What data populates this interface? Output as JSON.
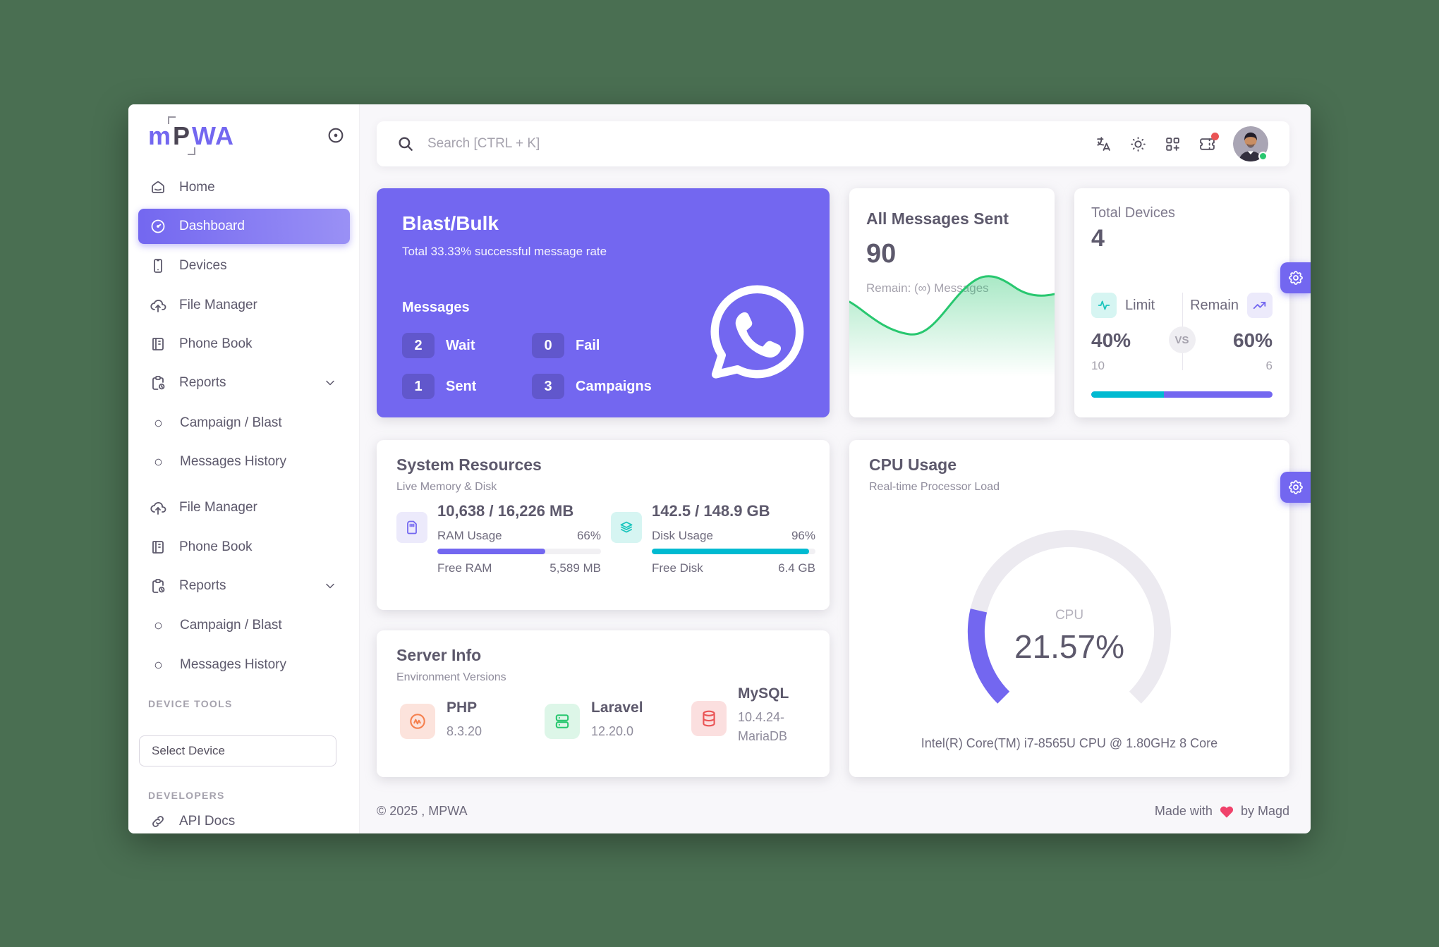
{
  "colors": {
    "background": "#4A6F52",
    "accent": "#7367F0",
    "teal": "#00BAD1",
    "success": "#28C76F",
    "danger": "#EA5455",
    "php_orange": "#F5804E",
    "heading": "#5D596C",
    "muted": "#A5A2AD"
  },
  "brand": {
    "part1": "m",
    "part2": "P",
    "part3": "WA"
  },
  "topbar": {
    "search_placeholder": "Search [CTRL + K]"
  },
  "sidebar": {
    "items": [
      {
        "label": "Home",
        "icon": "home"
      },
      {
        "label": "Dashboard",
        "icon": "gauge",
        "active": true
      },
      {
        "label": "Devices",
        "icon": "device-mobile"
      },
      {
        "label": "File Manager",
        "icon": "cloud-upload"
      },
      {
        "label": "Phone Book",
        "icon": "notebook"
      },
      {
        "label": "Reports",
        "icon": "report",
        "chevron": true
      },
      {
        "label": "Campaign / Blast",
        "icon": "circle",
        "sub": true
      },
      {
        "label": "Messages History",
        "icon": "circle",
        "sub": true
      },
      {
        "label": "File Manager",
        "icon": "cloud-upload"
      },
      {
        "label": "Phone Book",
        "icon": "notebook"
      },
      {
        "label": "Reports",
        "icon": "report",
        "chevron": true
      },
      {
        "label": "Campaign / Blast",
        "icon": "circle",
        "sub": true
      },
      {
        "label": "Messages History",
        "icon": "circle",
        "sub": true
      }
    ],
    "device_tools_label": "DEVICE TOOLS",
    "select_device_value": "Select Device",
    "developers_label": "DEVELOPERS",
    "api_docs_label": "API Docs"
  },
  "blast": {
    "title": "Blast/Bulk",
    "subtitle": "Total 33.33% successful message rate",
    "section_label": "Messages",
    "stats": [
      {
        "value": "2",
        "label": "Wait"
      },
      {
        "value": "0",
        "label": "Fail"
      },
      {
        "value": "1",
        "label": "Sent"
      },
      {
        "value": "3",
        "label": "Campaigns"
      }
    ]
  },
  "messages_card": {
    "title": "All Messages Sent",
    "count": "90",
    "remain": "Remain: (∞) Messages"
  },
  "devices_card": {
    "title": "Total Devices",
    "count": "4",
    "limit_label": "Limit",
    "remain_label": "Remain",
    "vs_label": "VS",
    "limit_pct": "40%",
    "remain_pct": "60%",
    "limit_total": "10",
    "remain_total": "6"
  },
  "system_card": {
    "title": "System Resources",
    "subtitle": "Live Memory & Disk",
    "ram": {
      "total": "10,638 / 16,226 MB",
      "usage_label": "RAM Usage",
      "usage_pct": "66%",
      "free_label": "Free RAM",
      "free_value": "5,589 MB"
    },
    "disk": {
      "total": "142.5 / 148.9 GB",
      "usage_label": "Disk Usage",
      "usage_pct": "96%",
      "free_label": "Free Disk",
      "free_value": "6.4 GB"
    }
  },
  "cpu_card": {
    "title": "CPU Usage",
    "subtitle": "Real-time Processor Load",
    "gauge_label": "CPU",
    "gauge_value": "21.57%",
    "processor": "Intel(R) Core(TM) i7-8565U CPU @ 1.80GHz 8 Core"
  },
  "server_card": {
    "title": "Server Info",
    "subtitle": "Environment Versions",
    "items": [
      {
        "name": "PHP",
        "version": "8.3.20"
      },
      {
        "name": "Laravel",
        "version": "12.20.0"
      },
      {
        "name": "MySQL",
        "version": "10.4.24-MariaDB"
      }
    ]
  },
  "footer": {
    "copyright": "© 2025 , MPWA",
    "made_with": "Made with",
    "credit": "by Magd"
  }
}
